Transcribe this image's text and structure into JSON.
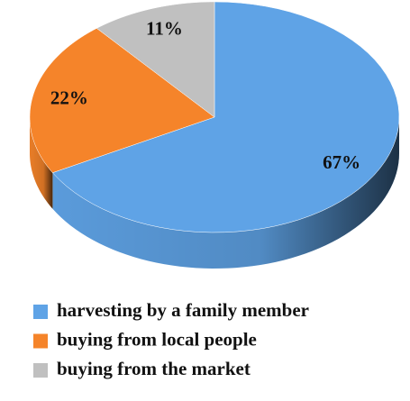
{
  "chart_data": {
    "type": "pie",
    "categories": [
      "harvesting by a family member",
      "buying from local people",
      "buying from the market"
    ],
    "values": [
      67,
      22,
      11
    ],
    "value_labels": [
      "67%",
      "22%",
      "11%"
    ],
    "colors": [
      "#5fa3e6",
      "#f5842a",
      "#c0c0c0"
    ],
    "legend": "bottom"
  }
}
